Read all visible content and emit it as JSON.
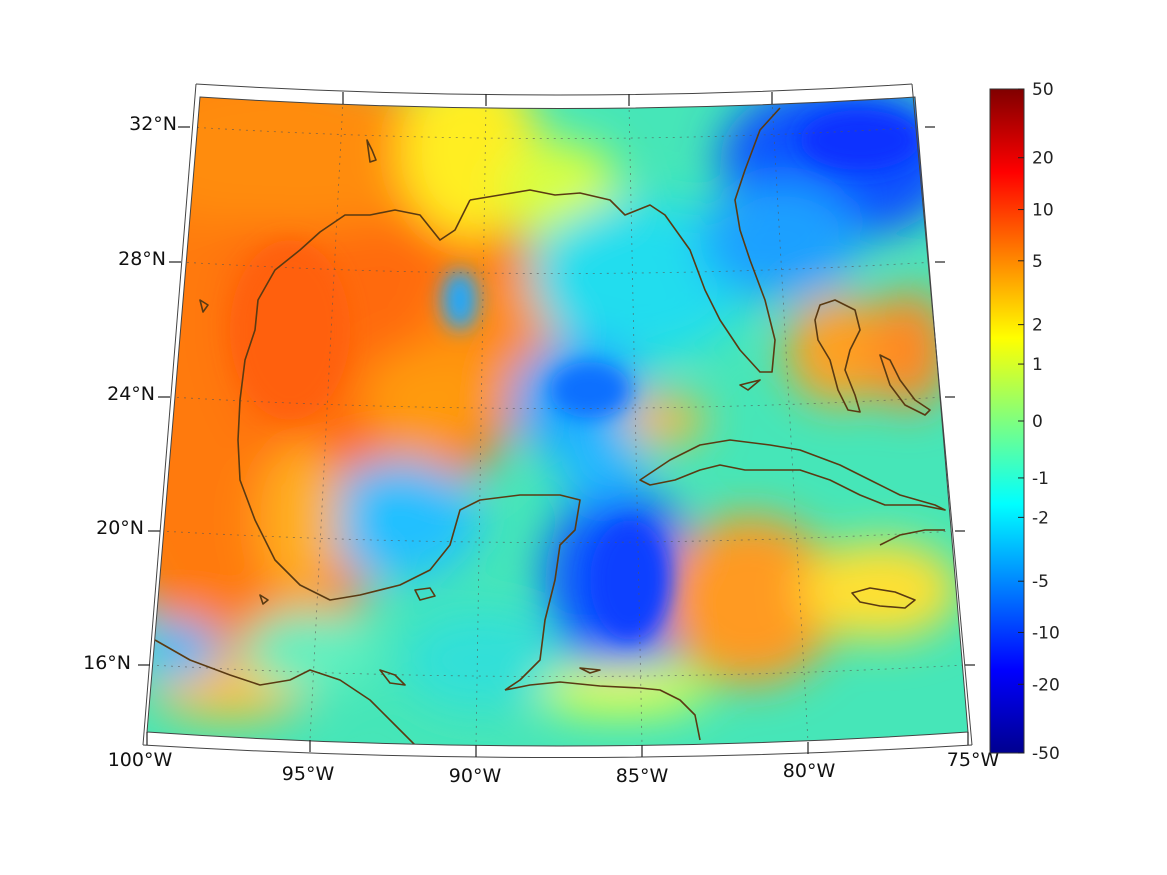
{
  "map": {
    "projection": "conic",
    "region": "Gulf of Mexico and Caribbean",
    "lat_labels": [
      "32°N",
      "28°N",
      "24°N",
      "20°N",
      "16°N"
    ],
    "lon_labels": [
      "100°W",
      "95°W",
      "90°W",
      "85°W",
      "80°W",
      "75°W"
    ],
    "lon_range": [
      -100,
      -75
    ],
    "lat_range": [
      14,
      33
    ],
    "grid": true,
    "coastline_color": "#5a3a12"
  },
  "colorbar": {
    "scale": "symmetric-log",
    "ticks": [
      "50",
      "20",
      "10",
      "5",
      "2",
      "1",
      "0",
      "-1",
      "-2",
      "-5",
      "-10",
      "-20",
      "-50"
    ],
    "range": [
      -50,
      50
    ],
    "colormap": "jet"
  }
}
